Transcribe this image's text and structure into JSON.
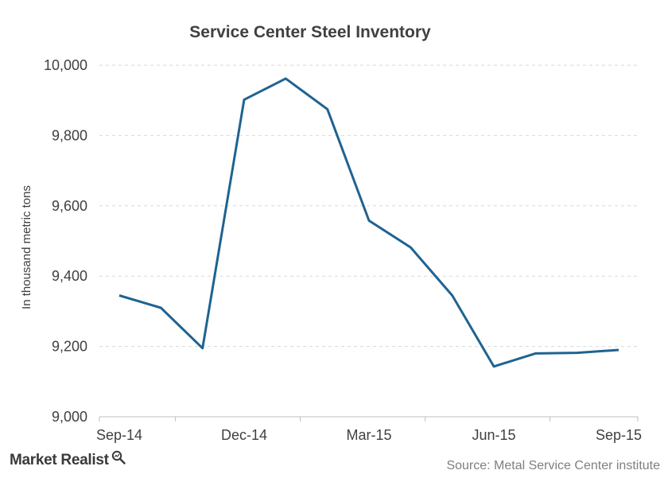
{
  "chart_data": {
    "type": "line",
    "title": "Service Center Steel Inventory",
    "xlabel": "",
    "ylabel": "In thousand metric tons",
    "x": [
      "2014-09",
      "2014-10",
      "2014-11",
      "2014-12",
      "2015-01",
      "2015-02",
      "2015-03",
      "2015-04",
      "2015-05",
      "2015-06",
      "2015-07",
      "2015-08",
      "2015-09"
    ],
    "series": [
      {
        "values": [
          9345,
          9310,
          9195,
          9902,
          9962,
          9875,
          9558,
          9482,
          9345,
          9143,
          9180,
          9182,
          9190
        ],
        "color": "#1f6391"
      }
    ],
    "xticks": [
      "Sep-14",
      "Dec-14",
      "Mar-15",
      "Jun-15",
      "Sep-15"
    ],
    "xtick_indices": [
      0,
      3,
      6,
      9,
      12
    ],
    "ylim": [
      9000,
      10000
    ],
    "yticks": [
      "9,000",
      "9,200",
      "9,400",
      "9,600",
      "9,800",
      "10,000"
    ],
    "ytick_values": [
      9000,
      9200,
      9400,
      9600,
      9800,
      10000
    ],
    "grid": true,
    "legend": "none"
  },
  "footer": {
    "brand": "Market Realist",
    "brand_icon": "magnifier-icon",
    "source": "Source: Metal Service Center institute"
  }
}
